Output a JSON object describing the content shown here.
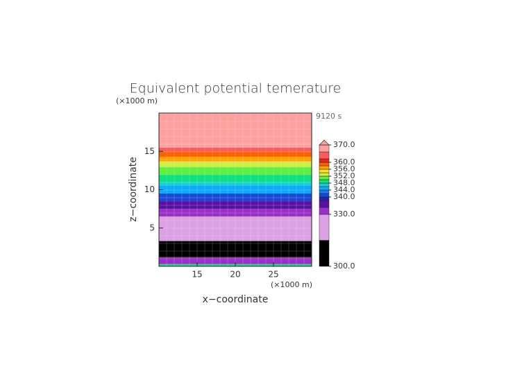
{
  "chart_data": {
    "type": "contourf",
    "title": "Equivalent potential temerature",
    "y_unit": "(×1000 m)",
    "x_unit": "(×1000 m)",
    "time_label": "9120 s",
    "x_label": "x−coordinate",
    "y_label": "z−coordinate",
    "xlim": [
      10,
      30
    ],
    "xticks": [
      15,
      20,
      25
    ],
    "ylim": [
      0,
      20
    ],
    "yticks": [
      5,
      10,
      15
    ],
    "z_bottom": [
      0,
      0.3,
      1.2,
      3.3,
      6.5,
      7.5,
      8.5,
      9.5,
      10.5,
      11,
      12,
      13,
      13.7,
      14.3,
      15,
      15.5
    ],
    "theta": [
      348,
      332,
      310,
      325,
      332,
      337,
      341,
      345,
      347,
      349,
      351,
      353,
      356,
      359,
      363,
      368
    ],
    "levels": [
      300,
      315,
      330,
      334,
      338,
      340,
      342,
      344,
      346,
      348,
      350,
      352,
      354,
      356,
      358,
      360,
      362,
      366,
      370
    ],
    "colors": [
      "#000000",
      "#dca0e4",
      "#9a30c8",
      "#5a10a0",
      "#2a20b0",
      "#1848d8",
      "#1878f0",
      "#10a8f8",
      "#10d0d8",
      "#10e080",
      "#60f040",
      "#d0f040",
      "#ffe020",
      "#ffa000",
      "#ff6000",
      "#f02020",
      "#ff5a5a",
      "#ffa0a0"
    ],
    "extend_color": "#ffa0a0",
    "colorbar_ticks": [
      {
        "value": 300,
        "label": "300.0"
      },
      {
        "value": 330,
        "label": "330.0"
      },
      {
        "value": 340,
        "label": "340.0"
      },
      {
        "value": 344,
        "label": "344.0"
      },
      {
        "value": 348,
        "label": "348.0"
      },
      {
        "value": 352,
        "label": "352.0"
      },
      {
        "value": 356,
        "label": "356.0"
      },
      {
        "value": 360,
        "label": "360.0"
      },
      {
        "value": 370,
        "label": "370.0"
      }
    ]
  }
}
